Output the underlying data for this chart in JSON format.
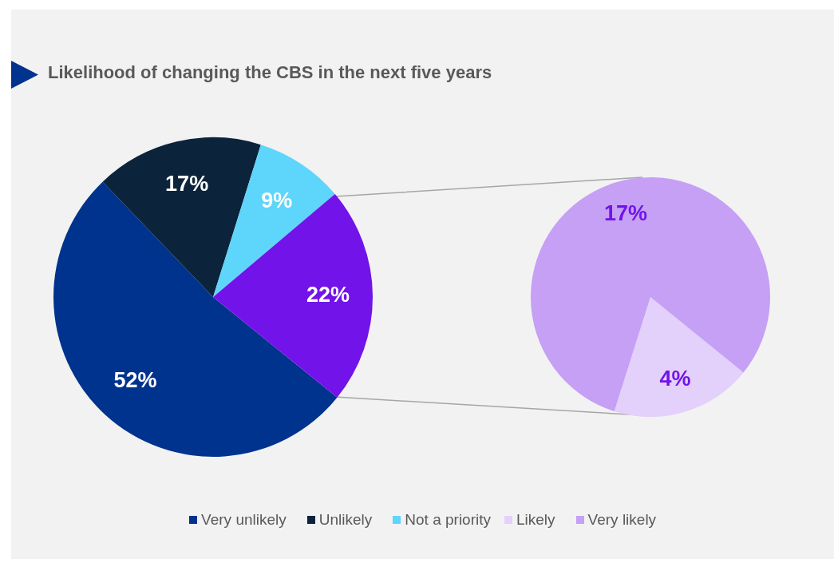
{
  "chart_data": [
    {
      "type": "pie",
      "title": "Likelihood of changing the CBS in the next five years",
      "categories": [
        "Very unlikely",
        "Unlikely",
        "Not a priority",
        null
      ],
      "values": [
        52,
        17,
        9,
        22
      ],
      "value_labels": [
        "52%",
        "17%",
        "9%",
        "22%"
      ],
      "colors": [
        "#00338d",
        "#0c233c",
        "#5ed5fb",
        "#7213ea"
      ],
      "legend": "bottom"
    },
    {
      "type": "pie",
      "categories": [
        "Likely",
        "Very likely"
      ],
      "values": [
        4,
        17
      ],
      "value_labels": [
        "4%",
        "17%"
      ],
      "colors": [
        "#e3d1fb",
        "#c5a0f5"
      ],
      "legend": "bottom"
    }
  ]
}
